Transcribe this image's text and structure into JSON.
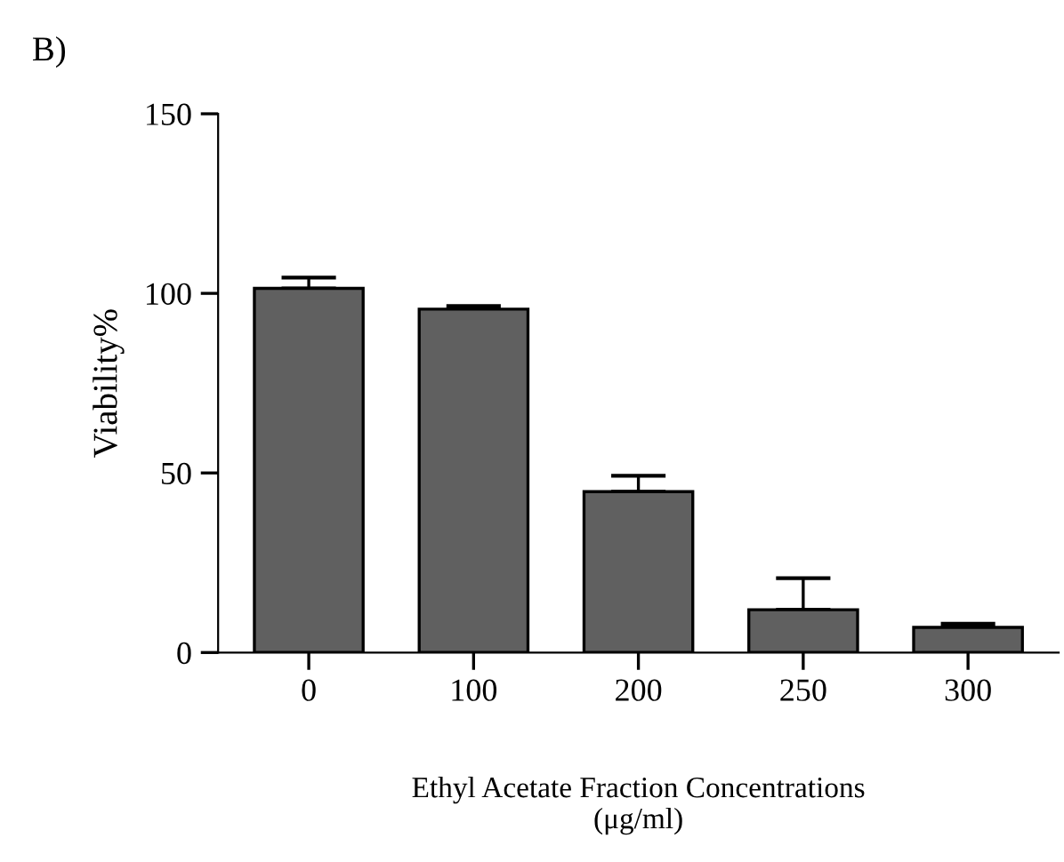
{
  "chart_data": {
    "type": "bar",
    "title": "B)",
    "xlabel": "Ethyl Acetate Fraction Concentrations\n(μg/ml)",
    "ylabel": "Viability%",
    "categories": [
      "0",
      "100",
      "200",
      "250",
      "300"
    ],
    "values": [
      101.4,
      95.6,
      44.8,
      11.9,
      7.0
    ],
    "errors": [
      3.0,
      0.9,
      4.4,
      8.8,
      1.0
    ],
    "color": "#606060",
    "ylim": [
      0,
      150
    ],
    "yticks": [
      0,
      50,
      100,
      150
    ],
    "grid": false,
    "legend": false
  }
}
